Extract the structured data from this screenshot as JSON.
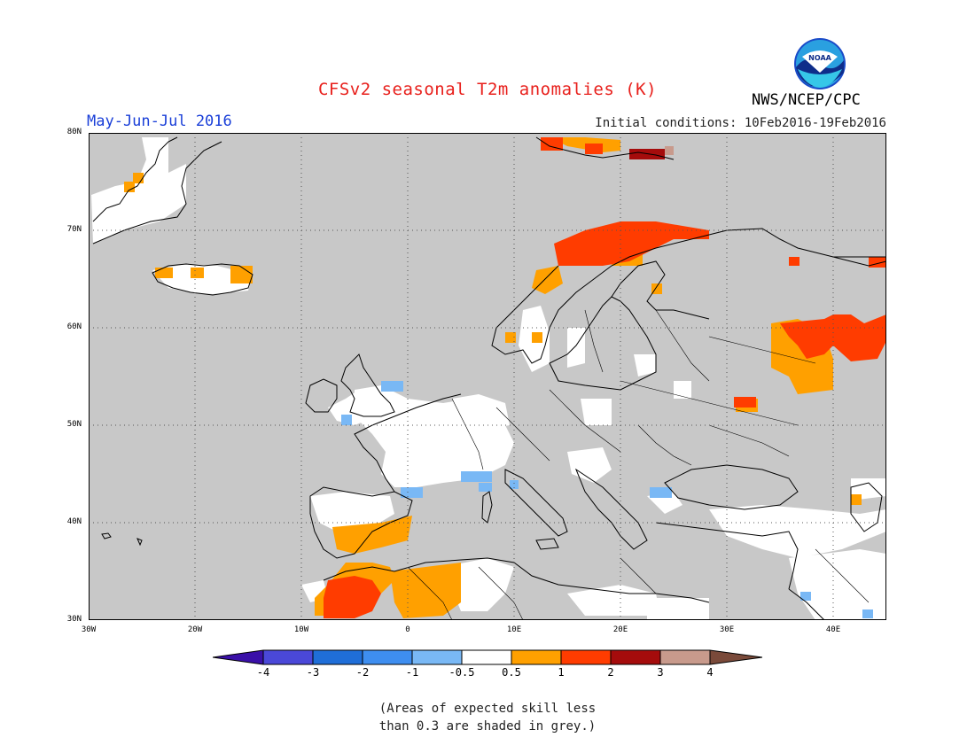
{
  "title": "CFSv2 seasonal T2m anomalies (K)",
  "period": "May-Jun-Jul 2016",
  "initial_conditions": "Initial conditions: 10Feb2016-19Feb2016",
  "organization": "NWS/NCEP/CPC",
  "logo_text": "NOAA",
  "note_line1": "(Areas of expected skill less",
  "note_line2": "than 0.3 are shaded in grey.)",
  "map": {
    "lon_range": [
      -30,
      45
    ],
    "lat_range": [
      30,
      80
    ],
    "lat_labels": [
      "80N",
      "70N",
      "60N",
      "50N",
      "40N",
      "30N"
    ],
    "lon_labels": [
      "30W",
      "20W",
      "10W",
      "0",
      "10E",
      "20E",
      "30E",
      "40E"
    ],
    "grid": "dotted",
    "background_color": "#c8c8c8"
  },
  "colorbar": {
    "tick_labels": [
      "-4",
      "-3",
      "-2",
      "-1",
      "-0.5",
      "0.5",
      "1",
      "2",
      "3",
      "4"
    ],
    "colors": [
      "#3a10a8",
      "#4a48d8",
      "#1f6ed8",
      "#3e8ef0",
      "#79b8f5",
      "#ffffff",
      "#ffa000",
      "#ff3c00",
      "#a50c0c",
      "#c89a8c",
      "#7a4a3a"
    ]
  }
}
